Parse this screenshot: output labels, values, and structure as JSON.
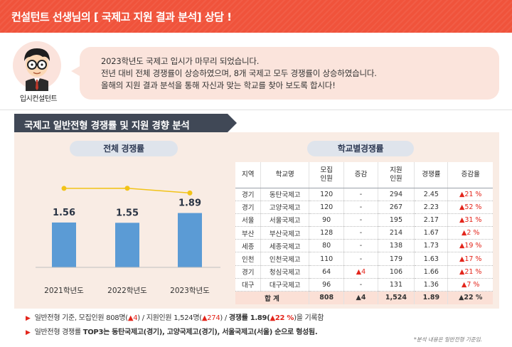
{
  "header": {
    "title": "컨설턴트 선생님의 [ 국제고 지원 결과 분석] 상담 !",
    "bg_color": "#f0533b"
  },
  "consultant": {
    "caption": "입시컨설턴트",
    "icon": "consultant-avatar-icon"
  },
  "bubble": {
    "lines": [
      "2023학년도 국제고 입시가 마무리 되었습니다.",
      "전년 대비 전체 경쟁률이 상승하였으며, 8개 국제고 모두 경쟁률이 상승하였습니다.",
      "올해의 지원 결과 분석을 통해 자신과 맞는 학교를 찾아 보도록 합시다!"
    ]
  },
  "section": {
    "title": "국제고 일반전형 경쟁률 및 지원 경향 분석"
  },
  "overall_chart": {
    "label": "전체 경쟁률"
  },
  "school_table": {
    "label": "학교별경쟁률",
    "headers": [
      "지역",
      "학교명",
      "모집\n인원",
      "증감",
      "지원\n인원",
      "경쟁률",
      "증감율"
    ],
    "rows": [
      {
        "region": "경기",
        "school": "동탄국제고",
        "quota": "120",
        "change": "-",
        "applicants": "294",
        "rate": "2.45",
        "rate_change": "▲21 %"
      },
      {
        "region": "경기",
        "school": "고양국제고",
        "quota": "120",
        "change": "-",
        "applicants": "267",
        "rate": "2.23",
        "rate_change": "▲52 %"
      },
      {
        "region": "서울",
        "school": "서울국제고",
        "quota": "90",
        "change": "-",
        "applicants": "195",
        "rate": "2.17",
        "rate_change": "▲31 %"
      },
      {
        "region": "부산",
        "school": "부산국제고",
        "quota": "128",
        "change": "-",
        "applicants": "214",
        "rate": "1.67",
        "rate_change": "▲2 %"
      },
      {
        "region": "세종",
        "school": "세종국제고",
        "quota": "80",
        "change": "-",
        "applicants": "138",
        "rate": "1.73",
        "rate_change": "▲19 %"
      },
      {
        "region": "인천",
        "school": "인천국제고",
        "quota": "110",
        "change": "-",
        "applicants": "179",
        "rate": "1.63",
        "rate_change": "▲17 %"
      },
      {
        "region": "경기",
        "school": "청심국제고",
        "quota": "64",
        "change": "▲4",
        "applicants": "106",
        "rate": "1.66",
        "rate_change": "▲21 %"
      },
      {
        "region": "대구",
        "school": "대구국제고",
        "quota": "96",
        "change": "-",
        "applicants": "131",
        "rate": "1.36",
        "rate_change": "▲7 %"
      }
    ],
    "total": {
      "label": "합   계",
      "quota": "808",
      "change": "▲4",
      "applicants": "1,524",
      "rate": "1.89",
      "rate_change": "▲22 %"
    }
  },
  "notes": {
    "line1": {
      "a": "일반전형 기준, 모집인원 808명(",
      "a_up": "▲4",
      "b": ") / 지원인원 1,524명(",
      "b_up": "▲274",
      "c": ") / ",
      "c_bold": "경쟁률 1.89(",
      "c_up": "▲22 %",
      "d": ")을 기록함"
    },
    "line2": {
      "a": "일반전형 경쟁률 ",
      "b_bold": "TOP3는 동탄국제고(경기), 고양국제고(경기), 서울국제고(서울) 순으로 형성됨."
    },
    "footnote": "*분석 내용은 일반전형 기준임."
  },
  "chart_data": {
    "type": "bar",
    "categories": [
      "2021학년도",
      "2022학년도",
      "2023학년도"
    ],
    "values": [
      1.56,
      1.55,
      1.89
    ],
    "data_labels": [
      "1.56",
      "1.55",
      "1.89"
    ],
    "line_overlay": true,
    "bar_color": "#5b9bd5",
    "line_color": "#f2c318",
    "ylim": [
      0,
      2.3
    ]
  },
  "colors": {
    "accent": "#f0533b",
    "section_bg": "#404856",
    "panel_bg": "#f9ece4",
    "up": "#e3251b"
  }
}
